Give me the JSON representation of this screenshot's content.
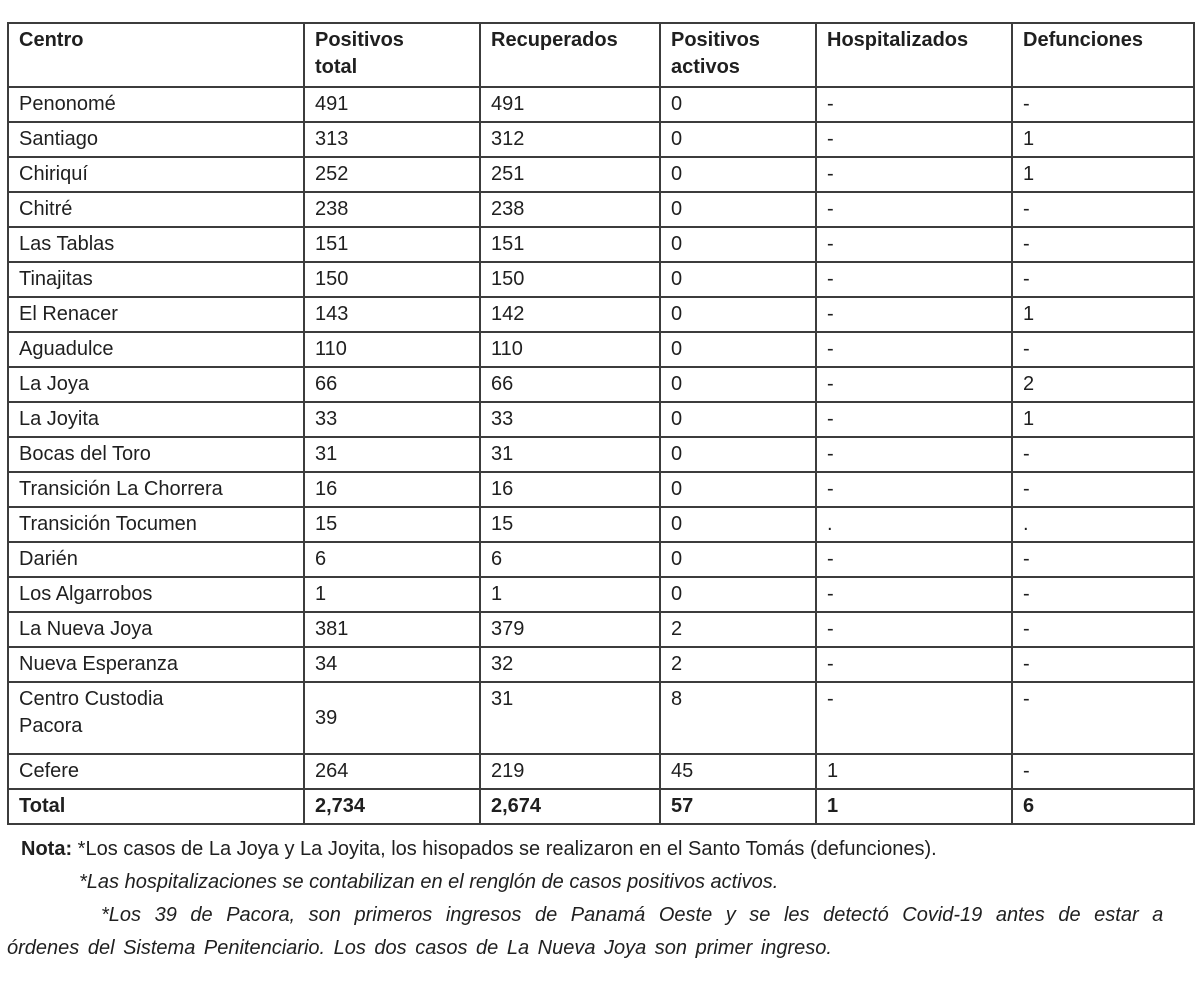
{
  "table": {
    "columns": [
      "Centro",
      "Positivos\ntotal",
      "Recuperados",
      "Positivos\nactivos",
      "Hospitalizados",
      "Defunciones"
    ],
    "rows": [
      {
        "cells": [
          "Penonomé",
          "491",
          "491",
          "0",
          "-",
          "-"
        ]
      },
      {
        "cells": [
          "Santiago",
          "313",
          "312",
          "0",
          "-",
          "1"
        ]
      },
      {
        "cells": [
          "Chiriquí",
          "252",
          "251",
          "0",
          "-",
          "1"
        ]
      },
      {
        "cells": [
          "Chitré",
          "238",
          "238",
          "0",
          "-",
          "-"
        ]
      },
      {
        "cells": [
          "Las Tablas",
          "151",
          "151",
          "0",
          "-",
          "-"
        ]
      },
      {
        "cells": [
          "Tinajitas",
          "150",
          "150",
          "0",
          "-",
          "-"
        ]
      },
      {
        "cells": [
          "El Renacer",
          "143",
          "142",
          "0",
          "-",
          "1"
        ]
      },
      {
        "cells": [
          "Aguadulce",
          "110",
          "110",
          "0",
          "-",
          "-"
        ]
      },
      {
        "cells": [
          "La Joya",
          "66",
          "66",
          "0",
          "-",
          "2"
        ]
      },
      {
        "cells": [
          "La Joyita",
          "33",
          "33",
          "0",
          "-",
          "1"
        ]
      },
      {
        "cells": [
          "Bocas del Toro",
          "31",
          "31",
          "0",
          "-",
          "-"
        ]
      },
      {
        "cells": [
          "Transición La Chorrera",
          "16",
          "16",
          "0",
          "-",
          "-"
        ]
      },
      {
        "cells": [
          "Transición Tocumen",
          "15",
          "15",
          "0",
          ".",
          "."
        ]
      },
      {
        "cells": [
          "Darién",
          "6",
          "6",
          "0",
          "-",
          "-"
        ]
      },
      {
        "cells": [
          "Los Algarrobos",
          "1",
          "1",
          "0",
          "-",
          "-"
        ]
      },
      {
        "cells": [
          "La Nueva Joya",
          "381",
          "379",
          "2",
          "-",
          "-"
        ]
      },
      {
        "cells": [
          "Nueva Esperanza",
          "34",
          "32",
          "2",
          "-",
          "-"
        ]
      },
      {
        "cells": [
          "Centro Custodia\nPacora",
          "39",
          "31",
          "8",
          "-",
          "-"
        ],
        "tall": true
      },
      {
        "cells": [
          "Cefere",
          "264",
          "219",
          "45",
          "1",
          "-"
        ]
      },
      {
        "cells": [
          "Total",
          "2,734",
          "2,674",
          "57",
          "1",
          "6"
        ],
        "bold": true
      }
    ]
  },
  "notes": {
    "label": "Nota:",
    "line1": "*Los casos de La Joya y La Joyita, los hisopados se realizaron en el Santo Tomás (defunciones).",
    "line2": "*Las hospitalizaciones se contabilizan en el renglón de casos positivos activos.",
    "line3": "*Los 39 de Pacora, son primeros ingresos de Panamá Oeste y se les detectó Covid-19 antes de estar a",
    "line4": "órdenes del Sistema Penitenciario. Los dos casos de La Nueva Joya son primer ingreso."
  },
  "colors": {
    "text": "#1f1f1f",
    "border": "#3c3c3c",
    "background": "#ffffff"
  }
}
